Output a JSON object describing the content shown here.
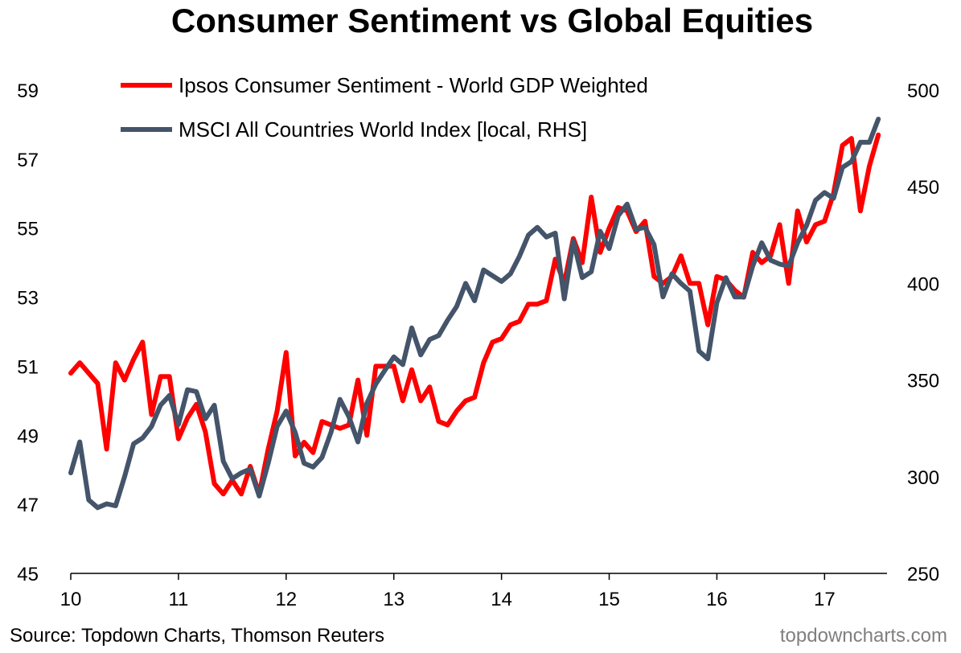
{
  "chart_data": {
    "type": "line",
    "title": "Consumer Sentiment vs Global Equities",
    "source": "Source: Topdown Charts, Thomson Reuters",
    "watermark": "topdowncharts.com",
    "x_ticks": [
      "10",
      "11",
      "12",
      "13",
      "14",
      "15",
      "16",
      "17"
    ],
    "x_tick_values": [
      2010,
      2011,
      2012,
      2013,
      2014,
      2015,
      2016,
      2017
    ],
    "xlim": [
      2010,
      2017.58
    ],
    "y_left": {
      "ticks": [
        "45",
        "47",
        "49",
        "51",
        "53",
        "55",
        "57",
        "59"
      ],
      "ylim": [
        45,
        59
      ]
    },
    "y_right": {
      "ticks": [
        "250",
        "300",
        "350",
        "400",
        "450",
        "500"
      ],
      "ylim": [
        250,
        500
      ]
    },
    "series": [
      {
        "name": "Ipsos Consumer Sentiment - World GDP Weighted",
        "axis": "left",
        "color": "#ff0000",
        "x_start": 2010.0,
        "x_step": 0.08333,
        "values": [
          50.8,
          51.1,
          50.8,
          50.5,
          48.6,
          51.1,
          50.6,
          51.2,
          51.7,
          49.6,
          50.7,
          50.7,
          48.9,
          49.5,
          49.9,
          49.1,
          47.6,
          47.3,
          47.7,
          47.3,
          48.1,
          47.3,
          48.6,
          49.7,
          51.4,
          48.4,
          48.8,
          48.5,
          49.4,
          49.3,
          49.2,
          49.3,
          50.6,
          49.0,
          51.0,
          51.0,
          51.0,
          50.0,
          50.9,
          50.0,
          50.4,
          49.4,
          49.3,
          49.7,
          50.0,
          50.1,
          51.1,
          51.7,
          51.8,
          52.2,
          52.3,
          52.8,
          52.8,
          52.9,
          54.1,
          53.4,
          54.7,
          54.0,
          55.9,
          54.3,
          55.0,
          55.6,
          55.5,
          54.9,
          55.2,
          53.6,
          53.4,
          53.6,
          54.2,
          53.4,
          53.4,
          52.2,
          53.6,
          53.5,
          53.2,
          53.0,
          54.3,
          54.0,
          54.2,
          55.1,
          53.4,
          55.5,
          54.6,
          55.1,
          55.2,
          56.0,
          57.4,
          57.6,
          55.5,
          56.8,
          57.7
        ]
      },
      {
        "name": "MSCI All Countries World Index [local, RHS]",
        "axis": "right",
        "color": "#44546a",
        "x_start": 2010.0,
        "x_step": 0.08333,
        "values": [
          302,
          318,
          288,
          284,
          286,
          285,
          300,
          317,
          320,
          326,
          337,
          342,
          327,
          345,
          344,
          330,
          337,
          308,
          299,
          302,
          304,
          290,
          307,
          326,
          334,
          323,
          307,
          305,
          310,
          323,
          340,
          331,
          318,
          338,
          348,
          355,
          362,
          358,
          377,
          363,
          371,
          373,
          381,
          388,
          400,
          391,
          407,
          404,
          401,
          405,
          414,
          425,
          429,
          424,
          426,
          392,
          422,
          403,
          406,
          427,
          418,
          435,
          441,
          428,
          429,
          420,
          393,
          405,
          400,
          396,
          365,
          361,
          390,
          403,
          393,
          393,
          409,
          421,
          412,
          410,
          409,
          421,
          430,
          443,
          447,
          444,
          460,
          463,
          473,
          473,
          485
        ]
      }
    ]
  }
}
